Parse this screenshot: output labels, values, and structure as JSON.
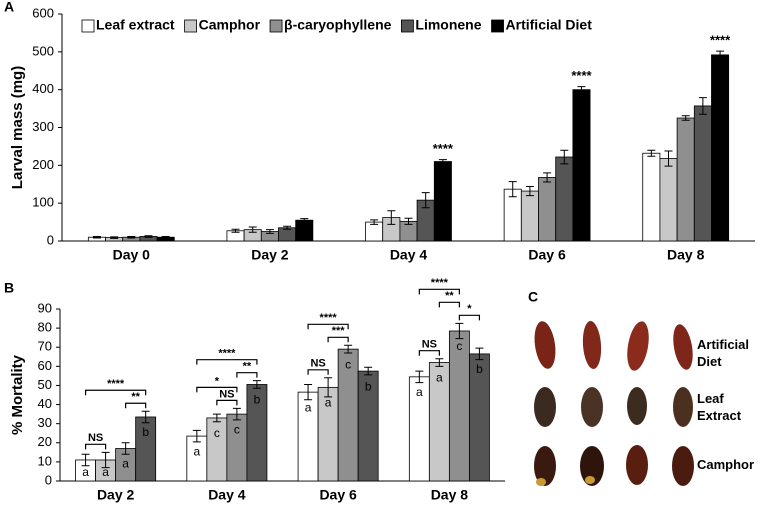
{
  "chart_data": [
    {
      "type": "bar",
      "panel": "A",
      "y_label": "Larval mass (mg)",
      "legend": "top",
      "categories": [
        "Day 0",
        "Day 2",
        "Day 4",
        "Day 6",
        "Day 8"
      ],
      "ylim": [
        0,
        600
      ],
      "yticks": [
        0,
        100,
        200,
        300,
        400,
        500,
        600
      ],
      "series": [
        {
          "name": "Leaf extract",
          "color": "#ffffff",
          "values": [
            10,
            27,
            50,
            137,
            232
          ],
          "errors": [
            2,
            4,
            6,
            20,
            8
          ]
        },
        {
          "name": "Camphor",
          "color": "#c8c8c8",
          "values": [
            9,
            30,
            62,
            132,
            218
          ],
          "errors": [
            2,
            7,
            18,
            12,
            20
          ]
        },
        {
          "name": "β-caryophyllene",
          "color": "#8f8f8f",
          "values": [
            10,
            25,
            52,
            168,
            325
          ],
          "errors": [
            2,
            5,
            8,
            12,
            6
          ]
        },
        {
          "name": "Limonene",
          "color": "#555555",
          "values": [
            12,
            35,
            108,
            222,
            357
          ],
          "errors": [
            2,
            4,
            20,
            18,
            22
          ]
        },
        {
          "name": "Artificial Diet",
          "color": "#000000",
          "values": [
            10,
            55,
            210,
            400,
            492
          ],
          "errors": [
            2,
            4,
            5,
            8,
            10
          ]
        }
      ],
      "sig_labels": [
        null,
        null,
        "****",
        "****",
        "****"
      ]
    },
    {
      "type": "bar",
      "panel": "B",
      "y_label": "% Mortality",
      "categories": [
        "Day 2",
        "Day 4",
        "Day 6",
        "Day 8"
      ],
      "ylim": [
        0,
        90
      ],
      "yticks": [
        0,
        10,
        20,
        30,
        40,
        50,
        60,
        70,
        80,
        90
      ],
      "series": [
        {
          "color": "#ffffff",
          "values": [
            11,
            23.5,
            46.5,
            54.5
          ],
          "errors": [
            3,
            3,
            4,
            3
          ],
          "letters": [
            "a",
            "a",
            "a",
            "a"
          ]
        },
        {
          "color": "#c8c8c8",
          "values": [
            11,
            33,
            49,
            62
          ],
          "errors": [
            4,
            2,
            5,
            2
          ],
          "letters": [
            "a",
            "c",
            "a",
            "a"
          ]
        },
        {
          "color": "#8f8f8f",
          "values": [
            17,
            35,
            69,
            78.5
          ],
          "errors": [
            3,
            3,
            2,
            4
          ],
          "letters": [
            "a",
            "c",
            "c",
            "c"
          ]
        },
        {
          "color": "#555555",
          "values": [
            33.5,
            50.5,
            57.5,
            66.5
          ],
          "errors": [
            3,
            2,
            2,
            3
          ],
          "letters": [
            "b",
            "b",
            "b",
            "b"
          ]
        }
      ],
      "brackets": [
        [
          {
            "from": 0,
            "to": 1,
            "label": "NS"
          },
          {
            "from": 2,
            "to": 3,
            "label": "**"
          },
          {
            "from": 0,
            "to": 3,
            "label": "****"
          }
        ],
        [
          {
            "from": 1,
            "to": 2,
            "label": "NS"
          },
          {
            "from": 0,
            "to": 2,
            "label": "*"
          },
          {
            "from": 2,
            "to": 3,
            "label": "**"
          },
          {
            "from": 0,
            "to": 3,
            "label": "****"
          }
        ],
        [
          {
            "from": 0,
            "to": 1,
            "label": "NS"
          },
          {
            "from": 1,
            "to": 2,
            "label": "***"
          },
          {
            "from": 0,
            "to": 2,
            "label": "****"
          }
        ],
        [
          {
            "from": 0,
            "to": 1,
            "label": "NS"
          },
          {
            "from": 2,
            "to": 3,
            "label": "*"
          },
          {
            "from": 1,
            "to": 2,
            "label": "**"
          },
          {
            "from": 0,
            "to": 2,
            "label": "****"
          }
        ]
      ]
    }
  ],
  "photo_panel": {
    "panel": "C",
    "labels": [
      "Artificial Diet",
      "Leaf Extract",
      "Camphor"
    ]
  }
}
